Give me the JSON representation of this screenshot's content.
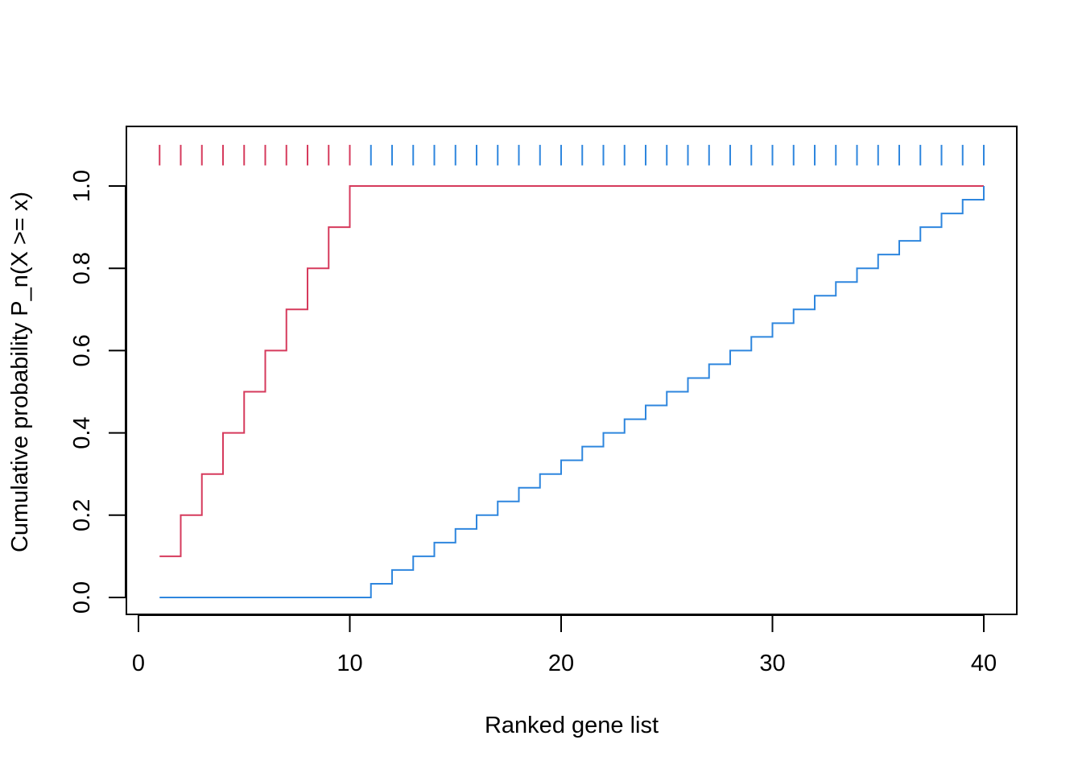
{
  "chart_data": {
    "type": "line",
    "step": true,
    "xlabel": "Ranked gene list",
    "ylabel": "Cumulative probability P_n(X >= x)",
    "xlim": [
      0,
      40
    ],
    "ylim": [
      0,
      1.1
    ],
    "x_ticks": [
      "0",
      "10",
      "20",
      "30",
      "40"
    ],
    "y_ticks": [
      "0.0",
      "0.2",
      "0.4",
      "0.6",
      "0.8",
      "1.0"
    ],
    "grid": false,
    "legend": "none",
    "series": [
      {
        "color": "#d63a5c",
        "x": [
          1,
          2,
          3,
          4,
          5,
          6,
          7,
          8,
          9,
          10,
          40
        ],
        "y": [
          0.1,
          0.2,
          0.3,
          0.4,
          0.5,
          0.6,
          0.7,
          0.8,
          0.9,
          1.0,
          1.0
        ]
      },
      {
        "color": "#2e86de",
        "x": [
          1,
          10,
          11,
          12,
          13,
          14,
          15,
          16,
          17,
          18,
          19,
          20,
          21,
          22,
          23,
          24,
          25,
          26,
          27,
          28,
          29,
          30,
          31,
          32,
          33,
          34,
          35,
          36,
          37,
          38,
          39,
          40
        ],
        "y": [
          0,
          0,
          0.0333,
          0.0667,
          0.1,
          0.1333,
          0.1667,
          0.2,
          0.2333,
          0.2667,
          0.3,
          0.3333,
          0.3667,
          0.4,
          0.4333,
          0.4667,
          0.5,
          0.5333,
          0.5667,
          0.6,
          0.6333,
          0.6667,
          0.7,
          0.7333,
          0.7667,
          0.8,
          0.8333,
          0.8667,
          0.9,
          0.9333,
          0.9667,
          1.0
        ]
      }
    ],
    "rug": {
      "y_range": [
        1.05,
        1.1
      ],
      "groups": [
        {
          "color": "#d63a5c",
          "positions": [
            1,
            2,
            3,
            4,
            5,
            6,
            7,
            8,
            9,
            10
          ]
        },
        {
          "color": "#2e86de",
          "positions": [
            11,
            12,
            13,
            14,
            15,
            16,
            17,
            18,
            19,
            20,
            21,
            22,
            23,
            24,
            25,
            26,
            27,
            28,
            29,
            30,
            31,
            32,
            33,
            34,
            35,
            36,
            37,
            38,
            39,
            40
          ]
        }
      ]
    }
  }
}
